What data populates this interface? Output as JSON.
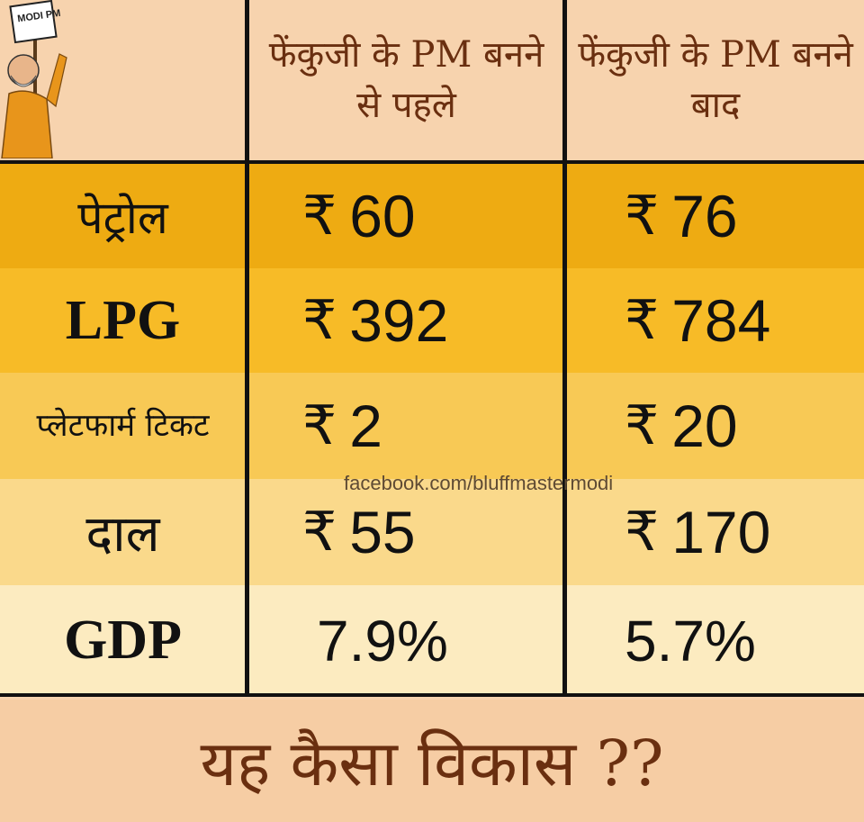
{
  "header": {
    "before_col": "फेंकुजी के PM बनने से पहले",
    "after_col": "फेंकुजी के PM बनने बाद",
    "sign_text": "MODI PM"
  },
  "rows": [
    {
      "label": "पेट्रोल",
      "before": "60",
      "after": "76",
      "bg": "#eeab12"
    },
    {
      "label": "LPG",
      "before": "392",
      "after": "784",
      "bg": "#f7bb27"
    },
    {
      "label": "प्लेटफार्म टिकट",
      "before": "2",
      "after": "20",
      "bg": "#f8c955"
    },
    {
      "label": "दाल",
      "before": "55",
      "after": "170",
      "bg": "#fad98b"
    },
    {
      "label": "GDP",
      "before": "7.9%",
      "after": "5.7%",
      "bg": "#fcebc0"
    }
  ],
  "currency_symbol": "₹",
  "watermark": "facebook.com/bluffmastermodi",
  "footer_text": "यह कैसा विकास ??",
  "colors": {
    "header_bg": "#f7d3ae",
    "text_brown": "#6a2f10",
    "border": "#111111"
  }
}
